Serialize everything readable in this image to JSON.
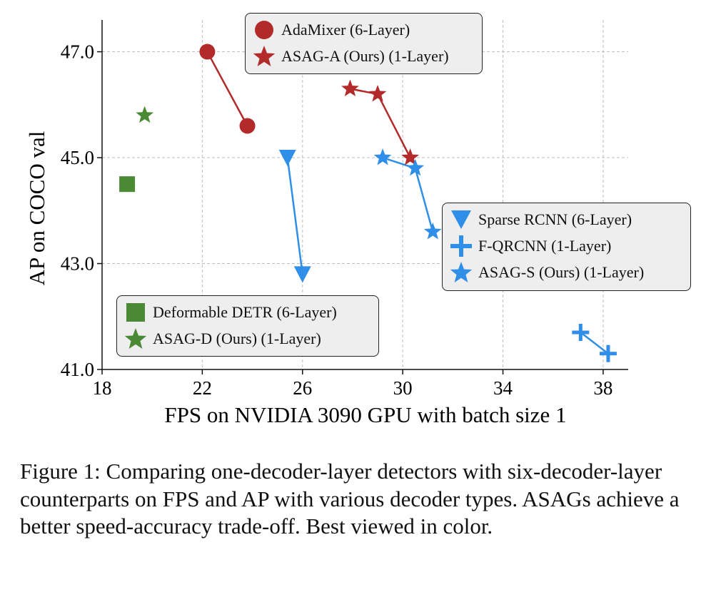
{
  "chart_data": {
    "type": "scatter",
    "xlabel": "FPS on NVIDIA 3090 GPU with batch size 1",
    "ylabel": "AP on COCO val",
    "xlim": [
      18,
      39
    ],
    "ylim": [
      41.0,
      47.6
    ],
    "xticks": [
      18,
      22,
      26,
      30,
      34,
      38
    ],
    "yticks": [
      41.0,
      43.0,
      45.0,
      47.0
    ],
    "xtick_labels": [
      "18",
      "22",
      "26",
      "30",
      "34",
      "38"
    ],
    "ytick_labels": [
      "41.0",
      "43.0",
      "45.0",
      "47.0"
    ],
    "grid": true,
    "pairs": [
      {
        "from": "AdaMixer (6-Layer)",
        "to": "AdaMixer (6-Layer)"
      }
    ],
    "series": [
      {
        "name": "AdaMixer (6-Layer)",
        "marker": "circle",
        "color": "#b22a2a",
        "points": [
          {
            "x": 22.2,
            "y": 47.0
          },
          {
            "x": 23.8,
            "y": 45.6
          }
        ]
      },
      {
        "name": "ASAG-A (Ours) (1-Layer)",
        "marker": "star",
        "color": "#b22a2a",
        "points": [
          {
            "x": 27.9,
            "y": 46.3
          },
          {
            "x": 29.0,
            "y": 46.2
          },
          {
            "x": 30.3,
            "y": 45.0
          }
        ]
      },
      {
        "name": "Sparse RCNN (6-Layer)",
        "marker": "triangle-down",
        "color": "#2f8fe8",
        "points": [
          {
            "x": 25.4,
            "y": 45.0
          },
          {
            "x": 26.0,
            "y": 42.8
          }
        ]
      },
      {
        "name": "F-QRCNN (1-Layer)",
        "marker": "plus",
        "color": "#2f8fe8",
        "points": [
          {
            "x": 37.1,
            "y": 41.7
          },
          {
            "x": 38.2,
            "y": 41.3
          }
        ]
      },
      {
        "name": "ASAG-S (Ours) (1-Layer)",
        "marker": "star",
        "color": "#2f8fe8",
        "points": [
          {
            "x": 29.2,
            "y": 45.0
          },
          {
            "x": 30.5,
            "y": 44.8
          },
          {
            "x": 31.2,
            "y": 43.6
          }
        ]
      },
      {
        "name": "Deformable DETR (6-Layer)",
        "marker": "square",
        "color": "#4a8a35",
        "points": [
          {
            "x": 19.0,
            "y": 44.5
          }
        ]
      },
      {
        "name": "ASAG-D (Ours) (1-Layer)",
        "marker": "star",
        "color": "#4a8a35",
        "points": [
          {
            "x": 19.7,
            "y": 45.8
          }
        ]
      }
    ],
    "legends": [
      {
        "placement": "top-center",
        "entries": [
          "AdaMixer (6-Layer)",
          "ASAG-A (Ours) (1-Layer)"
        ]
      },
      {
        "placement": "center-right",
        "entries": [
          "Sparse RCNN (6-Layer)",
          "F-QRCNN (1-Layer)",
          "ASAG-S (Ours) (1-Layer)"
        ]
      },
      {
        "placement": "bottom-left",
        "entries": [
          "Deformable DETR (6-Layer)",
          "ASAG-D (Ours) (1-Layer)"
        ]
      }
    ]
  },
  "legend_labels": {
    "adamixer": "AdaMixer (6-Layer)",
    "asag_a": "ASAG-A (Ours) (1-Layer)",
    "sparse_rcnn": "Sparse RCNN (6-Layer)",
    "fqrcnn": "F-QRCNN (1-Layer)",
    "asag_s": "ASAG-S (Ours) (1-Layer)",
    "deformable_detr": "Deformable DETR (6-Layer)",
    "asag_d": "ASAG-D (Ours) (1-Layer)"
  },
  "caption": "Figure 1: Comparing one-decoder-layer detectors with six-decoder-layer counterparts on FPS and AP with various decoder types. ASAGs achieve a better speed-accuracy trade-off. Best viewed in color."
}
